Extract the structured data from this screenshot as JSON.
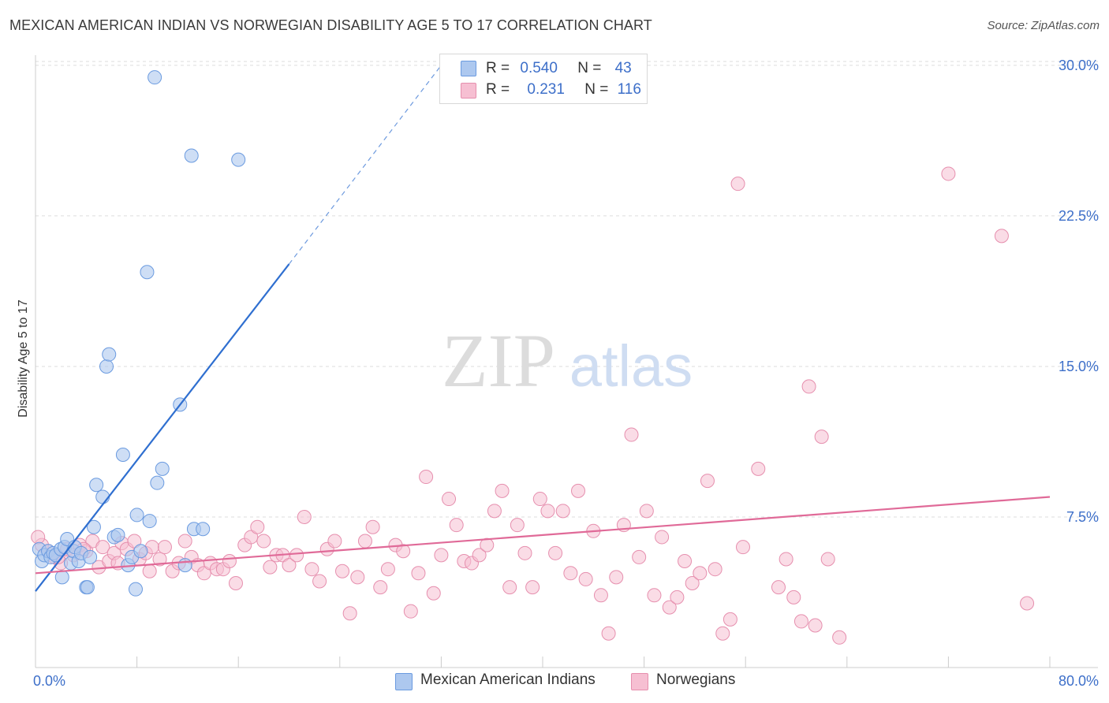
{
  "header": {
    "title": "MEXICAN AMERICAN INDIAN VS NORWEGIAN DISABILITY AGE 5 TO 17 CORRELATION CHART",
    "source": "Source: ZipAtlas.com"
  },
  "watermark": {
    "zip": "ZIP",
    "atlas": "atlas"
  },
  "legend_stats": [
    {
      "r_label": "R =",
      "r_value": "0.540",
      "n_label": "N =",
      "n_value": "43"
    },
    {
      "r_label": "R =",
      "r_value": "0.231",
      "n_label": "N =",
      "n_value": "116"
    }
  ],
  "colors": {
    "blue_fill": "#adc8ef",
    "blue_stroke": "#6b9be0",
    "blue_line": "#2f6fd0",
    "pink_fill": "#f6bfd2",
    "pink_stroke": "#e68fae",
    "pink_line": "#e06a98",
    "axis_text": "#3d6fc9",
    "grid": "#dddddd"
  },
  "chart_data": {
    "type": "scatter",
    "title": "MEXICAN AMERICAN INDIAN VS NORWEGIAN DISABILITY AGE 5 TO 17 CORRELATION CHART",
    "xlabel": "",
    "ylabel": "Disability Age 5 to 17",
    "xlim": [
      0,
      80
    ],
    "ylim": [
      0,
      31
    ],
    "x_tick_labels": [
      "0.0%",
      "80.0%"
    ],
    "y_ticks": [
      7.5,
      15.0,
      22.5,
      30.0
    ],
    "y_tick_labels": [
      "7.5%",
      "15.0%",
      "22.5%",
      "30.0%"
    ],
    "grid": true,
    "legend_position": "bottom",
    "series": [
      {
        "name": "Mexican American Indians",
        "color": "blue",
        "trend": {
          "x": [
            0,
            20
          ],
          "y": [
            3.8,
            20.1
          ],
          "dashed_to": [
            32,
            30.0
          ]
        },
        "points": [
          [
            0.3,
            5.9
          ],
          [
            0.5,
            5.3
          ],
          [
            0.7,
            5.6
          ],
          [
            1.0,
            5.8
          ],
          [
            1.2,
            5.5
          ],
          [
            1.4,
            5.7
          ],
          [
            1.6,
            5.6
          ],
          [
            2.0,
            5.9
          ],
          [
            2.3,
            6.0
          ],
          [
            2.5,
            6.4
          ],
          [
            2.8,
            5.2
          ],
          [
            3.0,
            5.8
          ],
          [
            3.1,
            6.0
          ],
          [
            3.4,
            5.3
          ],
          [
            3.6,
            5.7
          ],
          [
            4.0,
            4.0
          ],
          [
            4.3,
            5.5
          ],
          [
            4.6,
            7.0
          ],
          [
            4.8,
            9.1
          ],
          [
            5.3,
            8.5
          ],
          [
            5.6,
            15.0
          ],
          [
            5.8,
            15.6
          ],
          [
            6.2,
            6.5
          ],
          [
            6.5,
            6.6
          ],
          [
            6.9,
            10.6
          ],
          [
            7.3,
            5.1
          ],
          [
            7.6,
            5.5
          ],
          [
            7.9,
            3.9
          ],
          [
            8.0,
            7.6
          ],
          [
            8.3,
            5.8
          ],
          [
            8.8,
            19.7
          ],
          [
            9.0,
            7.3
          ],
          [
            9.4,
            29.4
          ],
          [
            9.6,
            9.2
          ],
          [
            10.0,
            9.9
          ],
          [
            11.4,
            13.1
          ],
          [
            11.8,
            5.1
          ],
          [
            12.3,
            25.5
          ],
          [
            12.5,
            6.9
          ],
          [
            13.2,
            6.9
          ],
          [
            16.0,
            25.3
          ],
          [
            4.1,
            4.0
          ],
          [
            2.1,
            4.5
          ]
        ]
      },
      {
        "name": "Norwegians",
        "color": "pink",
        "trend": {
          "x": [
            0,
            80
          ],
          "y": [
            4.7,
            8.5
          ]
        },
        "points": [
          [
            0.5,
            6.1
          ],
          [
            1.0,
            5.8
          ],
          [
            1.5,
            5.5
          ],
          [
            2.0,
            5.2
          ],
          [
            2.5,
            5.9
          ],
          [
            3.0,
            5.6
          ],
          [
            3.5,
            6.1
          ],
          [
            4.0,
            5.8
          ],
          [
            4.5,
            6.3
          ],
          [
            5.0,
            5.0
          ],
          [
            5.3,
            6.0
          ],
          [
            5.8,
            5.3
          ],
          [
            6.2,
            5.7
          ],
          [
            6.8,
            6.2
          ],
          [
            7.2,
            5.9
          ],
          [
            7.8,
            6.3
          ],
          [
            8.2,
            5.4
          ],
          [
            8.7,
            5.7
          ],
          [
            9.2,
            6.0
          ],
          [
            9.8,
            5.4
          ],
          [
            10.2,
            6.0
          ],
          [
            10.8,
            4.8
          ],
          [
            11.3,
            5.2
          ],
          [
            11.8,
            6.3
          ],
          [
            12.3,
            5.5
          ],
          [
            12.8,
            5.1
          ],
          [
            13.3,
            4.7
          ],
          [
            13.8,
            5.2
          ],
          [
            14.3,
            4.9
          ],
          [
            14.8,
            4.9
          ],
          [
            15.3,
            5.3
          ],
          [
            15.8,
            4.2
          ],
          [
            16.5,
            6.1
          ],
          [
            17.0,
            6.5
          ],
          [
            17.5,
            7.0
          ],
          [
            18.0,
            6.3
          ],
          [
            18.5,
            5.0
          ],
          [
            19.0,
            5.6
          ],
          [
            19.5,
            5.6
          ],
          [
            20.0,
            5.1
          ],
          [
            20.6,
            5.6
          ],
          [
            21.2,
            7.5
          ],
          [
            21.8,
            4.9
          ],
          [
            22.4,
            4.3
          ],
          [
            23.0,
            5.9
          ],
          [
            23.6,
            6.3
          ],
          [
            24.2,
            4.8
          ],
          [
            24.8,
            2.7
          ],
          [
            25.4,
            4.5
          ],
          [
            26.0,
            6.3
          ],
          [
            26.6,
            7.0
          ],
          [
            27.2,
            4.0
          ],
          [
            27.8,
            4.9
          ],
          [
            28.4,
            6.1
          ],
          [
            29.0,
            5.8
          ],
          [
            29.6,
            2.8
          ],
          [
            30.2,
            4.7
          ],
          [
            30.8,
            9.5
          ],
          [
            31.4,
            3.7
          ],
          [
            32.0,
            5.6
          ],
          [
            32.6,
            8.4
          ],
          [
            33.2,
            7.1
          ],
          [
            33.8,
            5.3
          ],
          [
            34.4,
            5.2
          ],
          [
            35.0,
            5.6
          ],
          [
            35.6,
            6.1
          ],
          [
            36.2,
            7.8
          ],
          [
            36.8,
            8.8
          ],
          [
            37.4,
            4.0
          ],
          [
            38.0,
            7.1
          ],
          [
            38.6,
            5.7
          ],
          [
            39.2,
            4.0
          ],
          [
            39.8,
            8.4
          ],
          [
            40.4,
            7.8
          ],
          [
            41.0,
            5.7
          ],
          [
            41.6,
            7.8
          ],
          [
            42.2,
            4.7
          ],
          [
            42.8,
            8.8
          ],
          [
            43.4,
            4.4
          ],
          [
            44.0,
            6.8
          ],
          [
            44.6,
            3.6
          ],
          [
            45.2,
            1.7
          ],
          [
            45.8,
            4.5
          ],
          [
            46.4,
            7.1
          ],
          [
            47.0,
            11.6
          ],
          [
            47.6,
            5.5
          ],
          [
            48.2,
            7.8
          ],
          [
            48.8,
            3.6
          ],
          [
            49.4,
            6.5
          ],
          [
            50.0,
            3.0
          ],
          [
            50.6,
            3.5
          ],
          [
            51.2,
            5.3
          ],
          [
            51.8,
            4.2
          ],
          [
            52.4,
            4.7
          ],
          [
            53.0,
            9.3
          ],
          [
            53.6,
            4.9
          ],
          [
            54.2,
            1.7
          ],
          [
            54.8,
            2.4
          ],
          [
            55.4,
            24.1
          ],
          [
            55.8,
            6.0
          ],
          [
            57.0,
            9.9
          ],
          [
            58.6,
            4.0
          ],
          [
            59.2,
            5.4
          ],
          [
            59.8,
            3.5
          ],
          [
            60.4,
            2.3
          ],
          [
            61.0,
            14.0
          ],
          [
            61.5,
            2.1
          ],
          [
            62.0,
            11.5
          ],
          [
            62.5,
            5.4
          ],
          [
            63.4,
            1.5
          ],
          [
            72.0,
            24.6
          ],
          [
            76.2,
            21.5
          ],
          [
            78.2,
            3.2
          ],
          [
            0.2,
            6.5
          ],
          [
            1.8,
            5.5
          ],
          [
            3.8,
            5.9
          ],
          [
            6.5,
            5.2
          ],
          [
            9.0,
            4.8
          ]
        ]
      }
    ]
  }
}
